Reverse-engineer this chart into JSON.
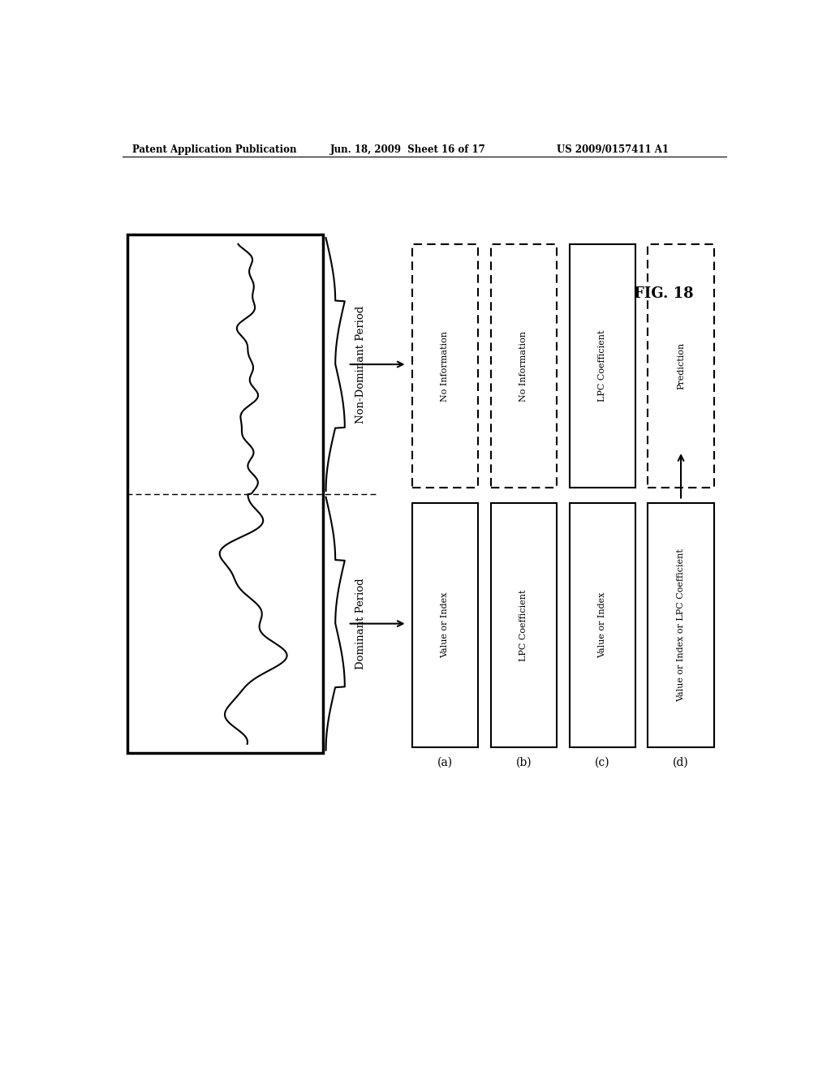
{
  "header_left": "Patent Application Publication",
  "header_center": "Jun. 18, 2009  Sheet 16 of 17",
  "header_right": "US 2009/0157411 A1",
  "fig_label": "FIG. 18",
  "period_labels": [
    "Non-Dominant Period",
    "Dominant Period"
  ],
  "col_labels": [
    "(a)",
    "(b)",
    "(c)",
    "(d)"
  ],
  "dominant_boxes": [
    {
      "text": "Value or Index",
      "dashed": false
    },
    {
      "text": "LPC Coefficient",
      "dashed": false
    },
    {
      "text": "Value or Index",
      "dashed": false
    },
    {
      "text": "Value or Index or LPC Coefficient",
      "dashed": false
    }
  ],
  "non_dominant_boxes": [
    {
      "text": "No Information",
      "dashed": true
    },
    {
      "text": "No Information",
      "dashed": true
    },
    {
      "text": "LPC Coefficient",
      "dashed": false
    },
    {
      "text": "Prediction",
      "dashed": true
    }
  ],
  "bg_color": "#ffffff",
  "fg_color": "#000000"
}
